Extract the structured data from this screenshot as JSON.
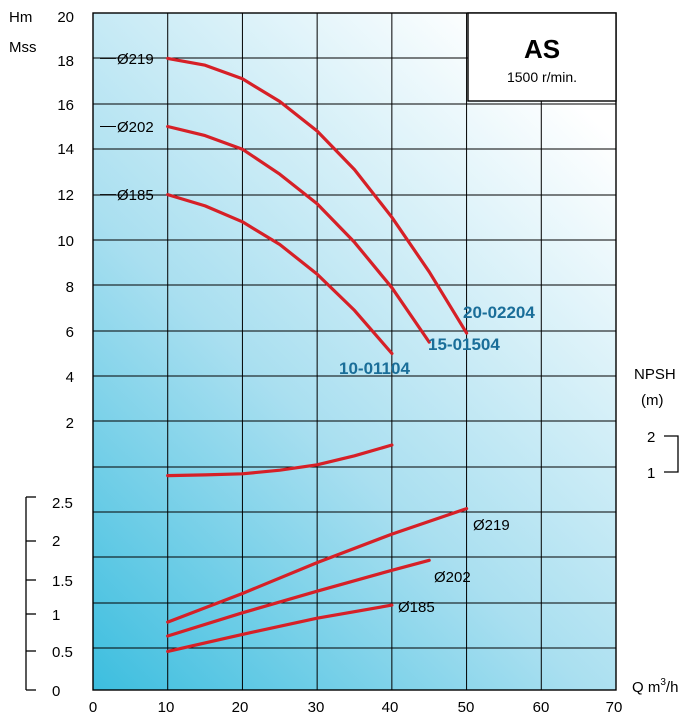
{
  "chart_data": {
    "type": "line",
    "model_box": {
      "title": "AS",
      "subtitle": "1500 r/min."
    },
    "head_axis": {
      "label_line1": "Hm",
      "label_line2": "Mss",
      "ticks": [
        "20",
        "18",
        "16",
        "14",
        "12",
        "10",
        "8",
        "6",
        "4",
        "2"
      ],
      "range": [
        0,
        20
      ]
    },
    "x_axis": {
      "label": "Q m",
      "label_sup": "3",
      "label_tail": "/h",
      "ticks": [
        "0",
        "10",
        "20",
        "30",
        "40",
        "50",
        "60",
        "70"
      ],
      "range": [
        0,
        70
      ]
    },
    "npsh_axis": {
      "label_line1": "NPSH",
      "label_line2": "(m)",
      "ticks": [
        "2",
        "1"
      ]
    },
    "power_axis": {
      "ticks": [
        "2.5",
        "2",
        "1.5",
        "1",
        "0.5",
        "0"
      ],
      "range": [
        0,
        2.5
      ]
    },
    "head_curves": [
      {
        "name": "Ø219",
        "model": "20-02204",
        "x": [
          10,
          15,
          20,
          25,
          30,
          35,
          40,
          45,
          50
        ],
        "y": [
          18,
          17.7,
          17.1,
          16.1,
          14.8,
          13.1,
          11.0,
          8.6,
          5.9
        ]
      },
      {
        "name": "Ø202",
        "model": "15-01504",
        "x": [
          10,
          15,
          20,
          25,
          30,
          35,
          40,
          45
        ],
        "y": [
          15,
          14.6,
          14.0,
          12.9,
          11.6,
          9.9,
          7.9,
          5.5
        ]
      },
      {
        "name": "Ø185",
        "model": "10-01104",
        "x": [
          10,
          15,
          20,
          25,
          30,
          35,
          40
        ],
        "y": [
          12,
          11.5,
          10.8,
          9.8,
          8.5,
          6.9,
          5.0
        ]
      }
    ],
    "npsh_curve": {
      "x": [
        10,
        15,
        20,
        25,
        30,
        35,
        40
      ],
      "y": [
        0.9,
        0.92,
        0.95,
        1.05,
        1.2,
        1.45,
        1.75
      ]
    },
    "power_curves": [
      {
        "name": "Ø219",
        "x": [
          10,
          20,
          30,
          40,
          50
        ],
        "y": [
          0.88,
          1.25,
          1.65,
          2.02,
          2.35
        ]
      },
      {
        "name": "Ø202",
        "x": [
          10,
          20,
          30,
          40,
          45
        ],
        "y": [
          0.7,
          1.0,
          1.28,
          1.55,
          1.68
        ]
      },
      {
        "name": "Ø185",
        "x": [
          10,
          20,
          30,
          40
        ],
        "y": [
          0.5,
          0.72,
          0.93,
          1.1
        ]
      }
    ],
    "colors": {
      "curve": "#d62027",
      "model_label": "#1a6e99",
      "grid": "#000000"
    },
    "grid": true
  }
}
